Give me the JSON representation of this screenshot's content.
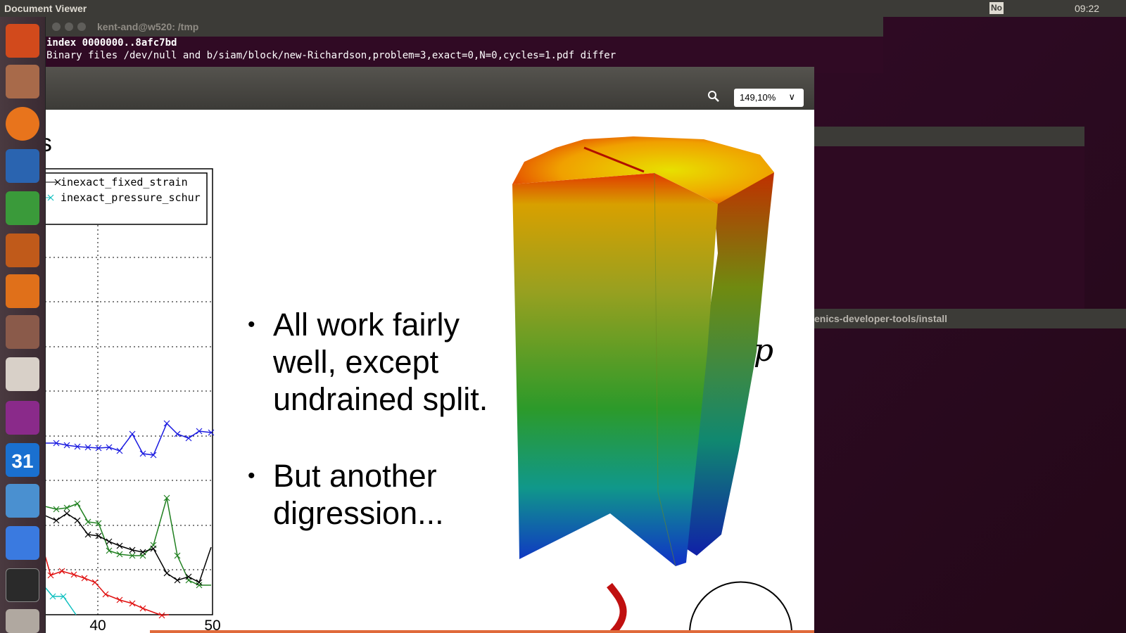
{
  "top_bar": {
    "title": "Document Viewer",
    "indicator": "No",
    "time": "09:22"
  },
  "launcher": {
    "calendar_day": "31"
  },
  "terminal": {
    "title": "kent-and@w520: /tmp",
    "lines": [
      "index 0000000..8afc7bd",
      "Binary files /dev/null and b/siam/block/new-Richardson,problem=3,exact=0,N=0,cycles=1.pdf differ"
    ]
  },
  "viewer": {
    "zoom": "149,10%",
    "slide": {
      "title_fragment": "tions",
      "legend": [
        "inexact_fixed_strain",
        "inexact_pressure_schur"
      ],
      "x_tick_labels": [
        "40",
        "50"
      ],
      "bullets": [
        [
          "All work fairly",
          "well, except",
          "undrained split."
        ],
        [
          "But another",
          "digression..."
        ]
      ],
      "figure_label": "p"
    }
  },
  "background_terminal": {
    "path": "enics-developer-tools/install"
  }
}
